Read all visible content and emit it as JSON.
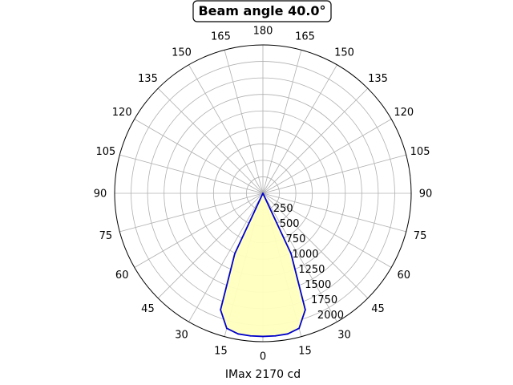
{
  "chart_data": {
    "type": "polar-line",
    "title": "Beam angle 40.0°",
    "xlabel": "IMax 2170 cd",
    "angle_tick_labels": [
      "0",
      "15",
      "30",
      "45",
      "60",
      "75",
      "90",
      "105",
      "120",
      "135",
      "150",
      "165",
      "180",
      "165",
      "150",
      "135",
      "120",
      "105",
      "90",
      "75",
      "60",
      "45",
      "30",
      "15"
    ],
    "radial_tick_values": [
      250,
      500,
      750,
      1000,
      1250,
      1500,
      1750,
      2000
    ],
    "radial_tick_labels": [
      "250",
      "500",
      "750",
      "1000",
      "1250",
      "1500",
      "1750",
      "2000"
    ],
    "rlim": [
      0,
      2250
    ],
    "grid": true,
    "colors": {
      "curve": "#0000cc",
      "fill": "#ffffbf",
      "grid": "#b0b0b0",
      "spine": "#000000"
    },
    "series": [
      {
        "angle_deg": [
          -30,
          -25,
          -20,
          -15,
          -10,
          -5,
          0,
          5,
          10,
          15,
          20,
          25,
          30
        ],
        "intensity_cd": [
          0,
          1010,
          1880,
          2120,
          2165,
          2170,
          2170,
          2170,
          2165,
          2120,
          1880,
          1010,
          0
        ]
      }
    ]
  }
}
